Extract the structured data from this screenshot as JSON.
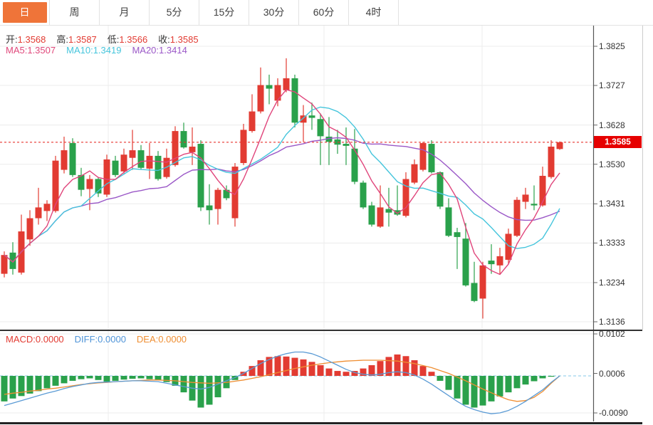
{
  "tabs": {
    "active_index": 0,
    "items": [
      {
        "name": "tab-day",
        "label": "日"
      },
      {
        "name": "tab-week",
        "label": "周"
      },
      {
        "name": "tab-month",
        "label": "月"
      },
      {
        "name": "tab-5min",
        "label": "5分"
      },
      {
        "name": "tab-15min",
        "label": "15分"
      },
      {
        "name": "tab-30min",
        "label": "30分"
      },
      {
        "name": "tab-60min",
        "label": "60分"
      },
      {
        "name": "tab-4hour",
        "label": "4时"
      }
    ]
  },
  "legend": {
    "ohlc": [
      {
        "name": "open",
        "label": "开:",
        "value": "1.3568"
      },
      {
        "name": "high",
        "label": "高:",
        "value": "1.3587"
      },
      {
        "name": "low",
        "label": "低:",
        "value": "1.3566"
      },
      {
        "name": "close",
        "label": "收:",
        "value": "1.3585"
      }
    ],
    "ma": [
      {
        "name": "ma5",
        "label": "MA5:",
        "value": "1.3507",
        "color": "#e0487b"
      },
      {
        "name": "ma10",
        "label": "MA10:",
        "value": "1.3419",
        "color": "#45c5dc"
      },
      {
        "name": "ma20",
        "label": "MA20:",
        "value": "1.3414",
        "color": "#9a57c7"
      }
    ],
    "macd": [
      {
        "name": "macd",
        "label": "MACD:",
        "value": "0.0000",
        "color": "#e23b32"
      },
      {
        "name": "diff",
        "label": "DIFF:",
        "value": "0.0000",
        "color": "#4f94d8"
      },
      {
        "name": "dea",
        "label": "DEA:",
        "value": "0.0000",
        "color": "#ef8e32"
      }
    ]
  },
  "axis": {
    "main_ticks": [
      "1.3825",
      "1.3727",
      "1.3628",
      "1.3530",
      "1.3431",
      "1.3333",
      "1.3234",
      "1.3136"
    ],
    "price_tag": "1.3585",
    "macd_ticks": [
      "0.0102",
      "0.0006",
      "-0.0090"
    ]
  },
  "colors": {
    "up": "#e23b32",
    "down": "#2aa14b",
    "ma5": "#e0457b",
    "ma10": "#45c5dc",
    "ma20": "#9a57c7",
    "diff": "#5b9bd5",
    "dea": "#ef8e32",
    "tag_bg": "#e60000",
    "dotted_line": "#e8332e",
    "grid": "#ececec",
    "tab_accent": "#ef7439",
    "value_red": "#e23b32",
    "zero_dash": "#86c9e8"
  },
  "chart_data": {
    "type": "candlestick+macd",
    "title": "",
    "main": {
      "ylim": [
        1.3136,
        1.3825
      ],
      "y_tick_values": [
        1.3825,
        1.3727,
        1.3628,
        1.353,
        1.3431,
        1.3333,
        1.3234,
        1.3136
      ],
      "current_price": 1.3585,
      "ma_periods": [
        5,
        10,
        20
      ],
      "last_ohlc": {
        "open": 1.3568,
        "high": 1.3587,
        "low": 1.3566,
        "close": 1.3585
      },
      "ohlc": [
        [
          1.3256,
          1.3312,
          1.3247,
          1.3303
        ],
        [
          1.3309,
          1.3335,
          1.3254,
          1.3268
        ],
        [
          1.3259,
          1.3404,
          1.3254,
          1.3362
        ],
        [
          1.3342,
          1.3415,
          1.3326,
          1.3395
        ],
        [
          1.3395,
          1.3471,
          1.3379,
          1.3422
        ],
        [
          1.3413,
          1.344,
          1.3388,
          1.3431
        ],
        [
          1.3413,
          1.3551,
          1.3409,
          1.3539
        ],
        [
          1.3516,
          1.3599,
          1.3507,
          1.3565
        ],
        [
          1.3583,
          1.3595,
          1.3498,
          1.3503
        ],
        [
          1.3503,
          1.3521,
          1.345,
          1.3466
        ],
        [
          1.3468,
          1.3503,
          1.3415,
          1.3493
        ],
        [
          1.3493,
          1.3498,
          1.3448,
          1.3457
        ],
        [
          1.3454,
          1.3554,
          1.3448,
          1.3542
        ],
        [
          1.3539,
          1.3551,
          1.3498,
          1.3503
        ],
        [
          1.3512,
          1.3569,
          1.3507,
          1.3554
        ],
        [
          1.3546,
          1.3616,
          1.3516,
          1.3565
        ],
        [
          1.3565,
          1.3578,
          1.3516,
          1.3521
        ],
        [
          1.3519,
          1.3583,
          1.3493,
          1.3551
        ],
        [
          1.3551,
          1.3563,
          1.3489,
          1.3493
        ],
        [
          1.3498,
          1.3569,
          1.3494,
          1.3546
        ],
        [
          1.3528,
          1.3625,
          1.3524,
          1.3613
        ],
        [
          1.3613,
          1.3634,
          1.3569,
          1.3572
        ],
        [
          1.356,
          1.3622,
          1.3528,
          1.3574
        ],
        [
          1.3581,
          1.359,
          1.3413,
          1.3422
        ],
        [
          1.3427,
          1.348,
          1.3379,
          1.3415
        ],
        [
          1.3418,
          1.3471,
          1.3379,
          1.3466
        ],
        [
          1.3466,
          1.3477,
          1.344,
          1.3445
        ],
        [
          1.3395,
          1.3533,
          1.3374,
          1.3524
        ],
        [
          1.3533,
          1.3631,
          1.3528,
          1.3616
        ],
        [
          1.3613,
          1.3705,
          1.3609,
          1.3662
        ],
        [
          1.3662,
          1.3772,
          1.3657,
          1.3728
        ],
        [
          1.3728,
          1.3754,
          1.368,
          1.3719
        ],
        [
          1.3689,
          1.3745,
          1.3675,
          1.3728
        ],
        [
          1.3715,
          1.3795,
          1.371,
          1.3745
        ],
        [
          1.3745,
          1.3754,
          1.3622,
          1.3634
        ],
        [
          1.3634,
          1.3678,
          1.3586,
          1.3652
        ],
        [
          1.3652,
          1.3684,
          1.3616,
          1.3646
        ],
        [
          1.3643,
          1.3657,
          1.3528,
          1.36
        ],
        [
          1.3599,
          1.3648,
          1.3528,
          1.3586
        ],
        [
          1.3592,
          1.3616,
          1.3556,
          1.3579
        ],
        [
          1.3581,
          1.3622,
          1.3528,
          1.3576
        ],
        [
          1.3569,
          1.3618,
          1.348,
          1.3486
        ],
        [
          1.3484,
          1.3489,
          1.3418,
          1.3422
        ],
        [
          1.3427,
          1.3436,
          1.3374,
          1.3379
        ],
        [
          1.3374,
          1.3477,
          1.3371,
          1.3422
        ],
        [
          1.3418,
          1.3471,
          1.3374,
          1.3409
        ],
        [
          1.3415,
          1.3477,
          1.3401,
          1.3404
        ],
        [
          1.3401,
          1.351,
          1.3397,
          1.3493
        ],
        [
          1.3484,
          1.3542,
          1.348,
          1.353
        ],
        [
          1.3516,
          1.3586,
          1.3512,
          1.3583
        ],
        [
          1.3581,
          1.359,
          1.3507,
          1.351
        ],
        [
          1.351,
          1.3512,
          1.3418,
          1.3424
        ],
        [
          1.3422,
          1.3445,
          1.3348,
          1.3351
        ],
        [
          1.336,
          1.3371,
          1.3268,
          1.3348
        ],
        [
          1.3344,
          1.3383,
          1.3224,
          1.3227
        ],
        [
          1.3233,
          1.3286,
          1.3185,
          1.3188
        ],
        [
          1.3194,
          1.3286,
          1.3144,
          1.3277
        ],
        [
          1.3289,
          1.333,
          1.3256,
          1.328
        ],
        [
          1.3277,
          1.3321,
          1.3256,
          1.33
        ],
        [
          1.3291,
          1.3369,
          1.328,
          1.3356
        ],
        [
          1.3351,
          1.3448,
          1.3348,
          1.3441
        ],
        [
          1.3436,
          1.3471,
          1.3418,
          1.3454
        ],
        [
          1.3431,
          1.3477,
          1.3415,
          1.3427
        ],
        [
          1.3427,
          1.3524,
          1.3424,
          1.3501
        ],
        [
          1.3498,
          1.359,
          1.3494,
          1.3574
        ],
        [
          1.3568,
          1.3587,
          1.3566,
          1.3585
        ]
      ]
    },
    "macd": {
      "y_tick_values": [
        0.0102,
        0.0006,
        -0.009
      ],
      "hist": [
        -0.0062,
        -0.0055,
        -0.0049,
        -0.0043,
        -0.0037,
        -0.003,
        -0.0024,
        -0.0018,
        -0.0012,
        -0.0008,
        -0.0006,
        -0.001,
        -0.0014,
        -0.0012,
        -0.0009,
        -0.0007,
        -0.0006,
        -0.0008,
        -0.0011,
        -0.0015,
        -0.0024,
        -0.004,
        -0.006,
        -0.0077,
        -0.007,
        -0.0052,
        -0.003,
        -0.001,
        0.001,
        0.0024,
        0.0038,
        0.0046,
        0.0048,
        0.0047,
        0.0044,
        0.004,
        0.0034,
        0.0026,
        0.0018,
        0.0012,
        0.001,
        0.0012,
        0.0018,
        0.0026,
        0.0036,
        0.0046,
        0.0052,
        0.0048,
        0.0038,
        0.0024,
        0.001,
        -0.0012,
        -0.0034,
        -0.0055,
        -0.007,
        -0.0077,
        -0.0072,
        -0.0062,
        -0.005,
        -0.004,
        -0.003,
        -0.0021,
        -0.0013,
        -0.0006,
        -0.0002,
        0.0
      ],
      "diff": [
        -0.0072,
        -0.0066,
        -0.006,
        -0.0054,
        -0.0048,
        -0.0042,
        -0.0037,
        -0.0031,
        -0.0026,
        -0.0022,
        -0.0018,
        -0.0016,
        -0.0015,
        -0.0014,
        -0.0013,
        -0.0012,
        -0.0012,
        -0.0013,
        -0.0014,
        -0.0018,
        -0.0022,
        -0.0026,
        -0.003,
        -0.0032,
        -0.0028,
        -0.002,
        -0.0012,
        -0.0004,
        0.0006,
        0.0018,
        0.003,
        0.004,
        0.0048,
        0.0054,
        0.0058,
        0.0058,
        0.0054,
        0.0046,
        0.0036,
        0.0026,
        0.0016,
        0.0008,
        0.0004,
        0.0002,
        0.0004,
        0.0008,
        0.001,
        0.0008,
        0.0002,
        -0.0008,
        -0.002,
        -0.0034,
        -0.0048,
        -0.0062,
        -0.0074,
        -0.0082,
        -0.0088,
        -0.0092,
        -0.009,
        -0.0084,
        -0.0074,
        -0.0062,
        -0.0048,
        -0.0034,
        -0.0016,
        0.0
      ],
      "dea": [
        -0.0045,
        -0.0042,
        -0.004,
        -0.0037,
        -0.0035,
        -0.0032,
        -0.003,
        -0.0027,
        -0.0024,
        -0.0021,
        -0.0019,
        -0.0017,
        -0.0016,
        -0.0014,
        -0.0013,
        -0.0012,
        -0.0011,
        -0.001,
        -0.001,
        -0.0011,
        -0.0012,
        -0.0014,
        -0.0016,
        -0.0017,
        -0.0018,
        -0.0017,
        -0.0016,
        -0.0013,
        -0.001,
        -0.0006,
        -0.0002,
        0.0003,
        0.0008,
        0.0013,
        0.0018,
        0.0022,
        0.0026,
        0.0029,
        0.0032,
        0.0034,
        0.0036,
        0.0037,
        0.0038,
        0.0038,
        0.0038,
        0.0037,
        0.0036,
        0.0033,
        0.003,
        0.0025,
        0.002,
        0.0013,
        0.0006,
        -0.0003,
        -0.0012,
        -0.0022,
        -0.0032,
        -0.0041,
        -0.005,
        -0.0058,
        -0.0062,
        -0.006,
        -0.0052,
        -0.0038,
        -0.0018,
        0.0
      ]
    }
  }
}
